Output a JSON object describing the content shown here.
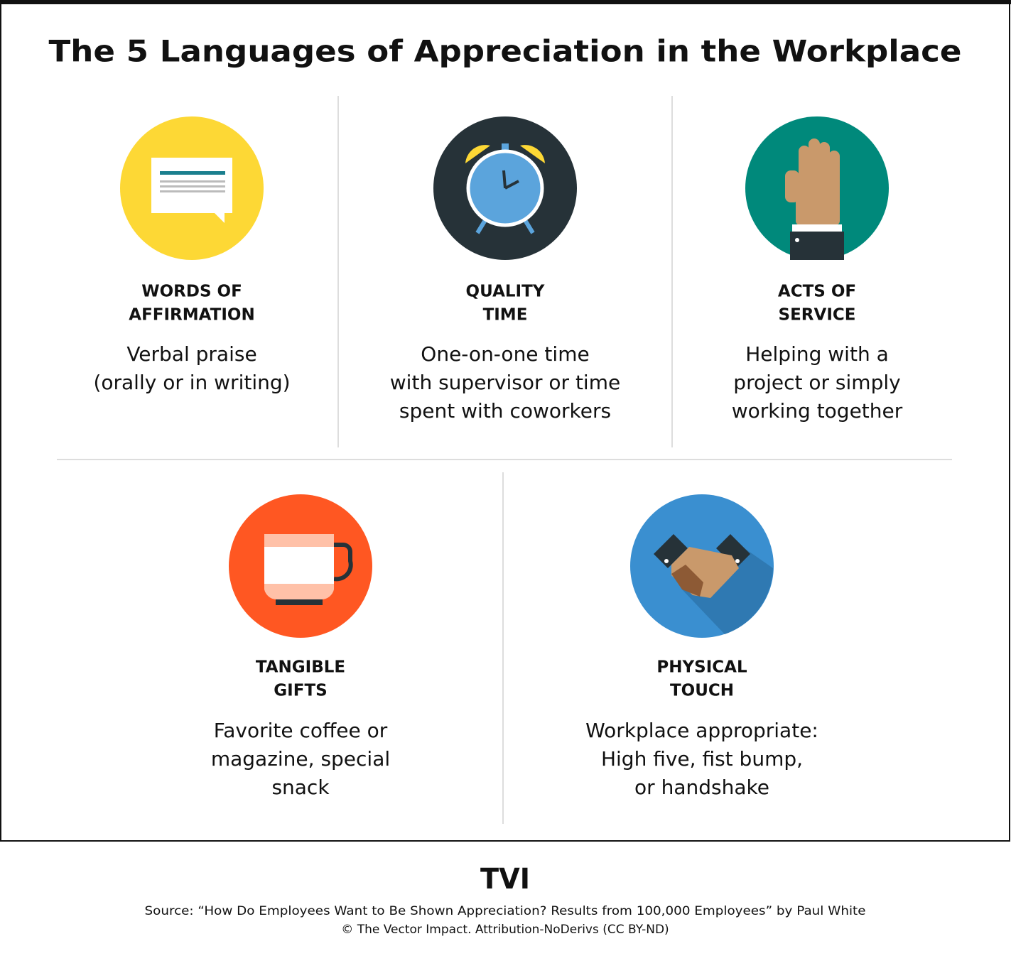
{
  "title": "The 5 Languages of Appreciation in the Workplace",
  "items": [
    {
      "heading": [
        "WORDS OF",
        "AFFIRMATION"
      ],
      "description": [
        "Verbal praise",
        "(orally or in writing)"
      ]
    },
    {
      "heading": [
        "QUALITY",
        "TIME"
      ],
      "description": [
        "One-on-one time",
        "with supervisor or time",
        "spent with coworkers"
      ]
    },
    {
      "heading": [
        "ACTS OF",
        "SERVICE"
      ],
      "description": [
        "Helping with a",
        "project or simply",
        "working together"
      ]
    },
    {
      "heading": [
        "TANGIBLE",
        "GIFTS"
      ],
      "description": [
        "Favorite coffee or",
        "magazine, special",
        "snack"
      ]
    },
    {
      "heading": [
        "PHYSICAL",
        "TOUCH"
      ],
      "description": [
        "Workplace appropriate:",
        "High five, fist bump,",
        "or handshake"
      ]
    }
  ],
  "footer": {
    "logo": "TVI",
    "source": "Source: “How Do Employees Want to Be Shown Appreciation? Results from 100,000 Employees” by Paul White",
    "copyright": "© The Vector Impact. Attribution-NoDerivs (CC BY-ND)"
  }
}
